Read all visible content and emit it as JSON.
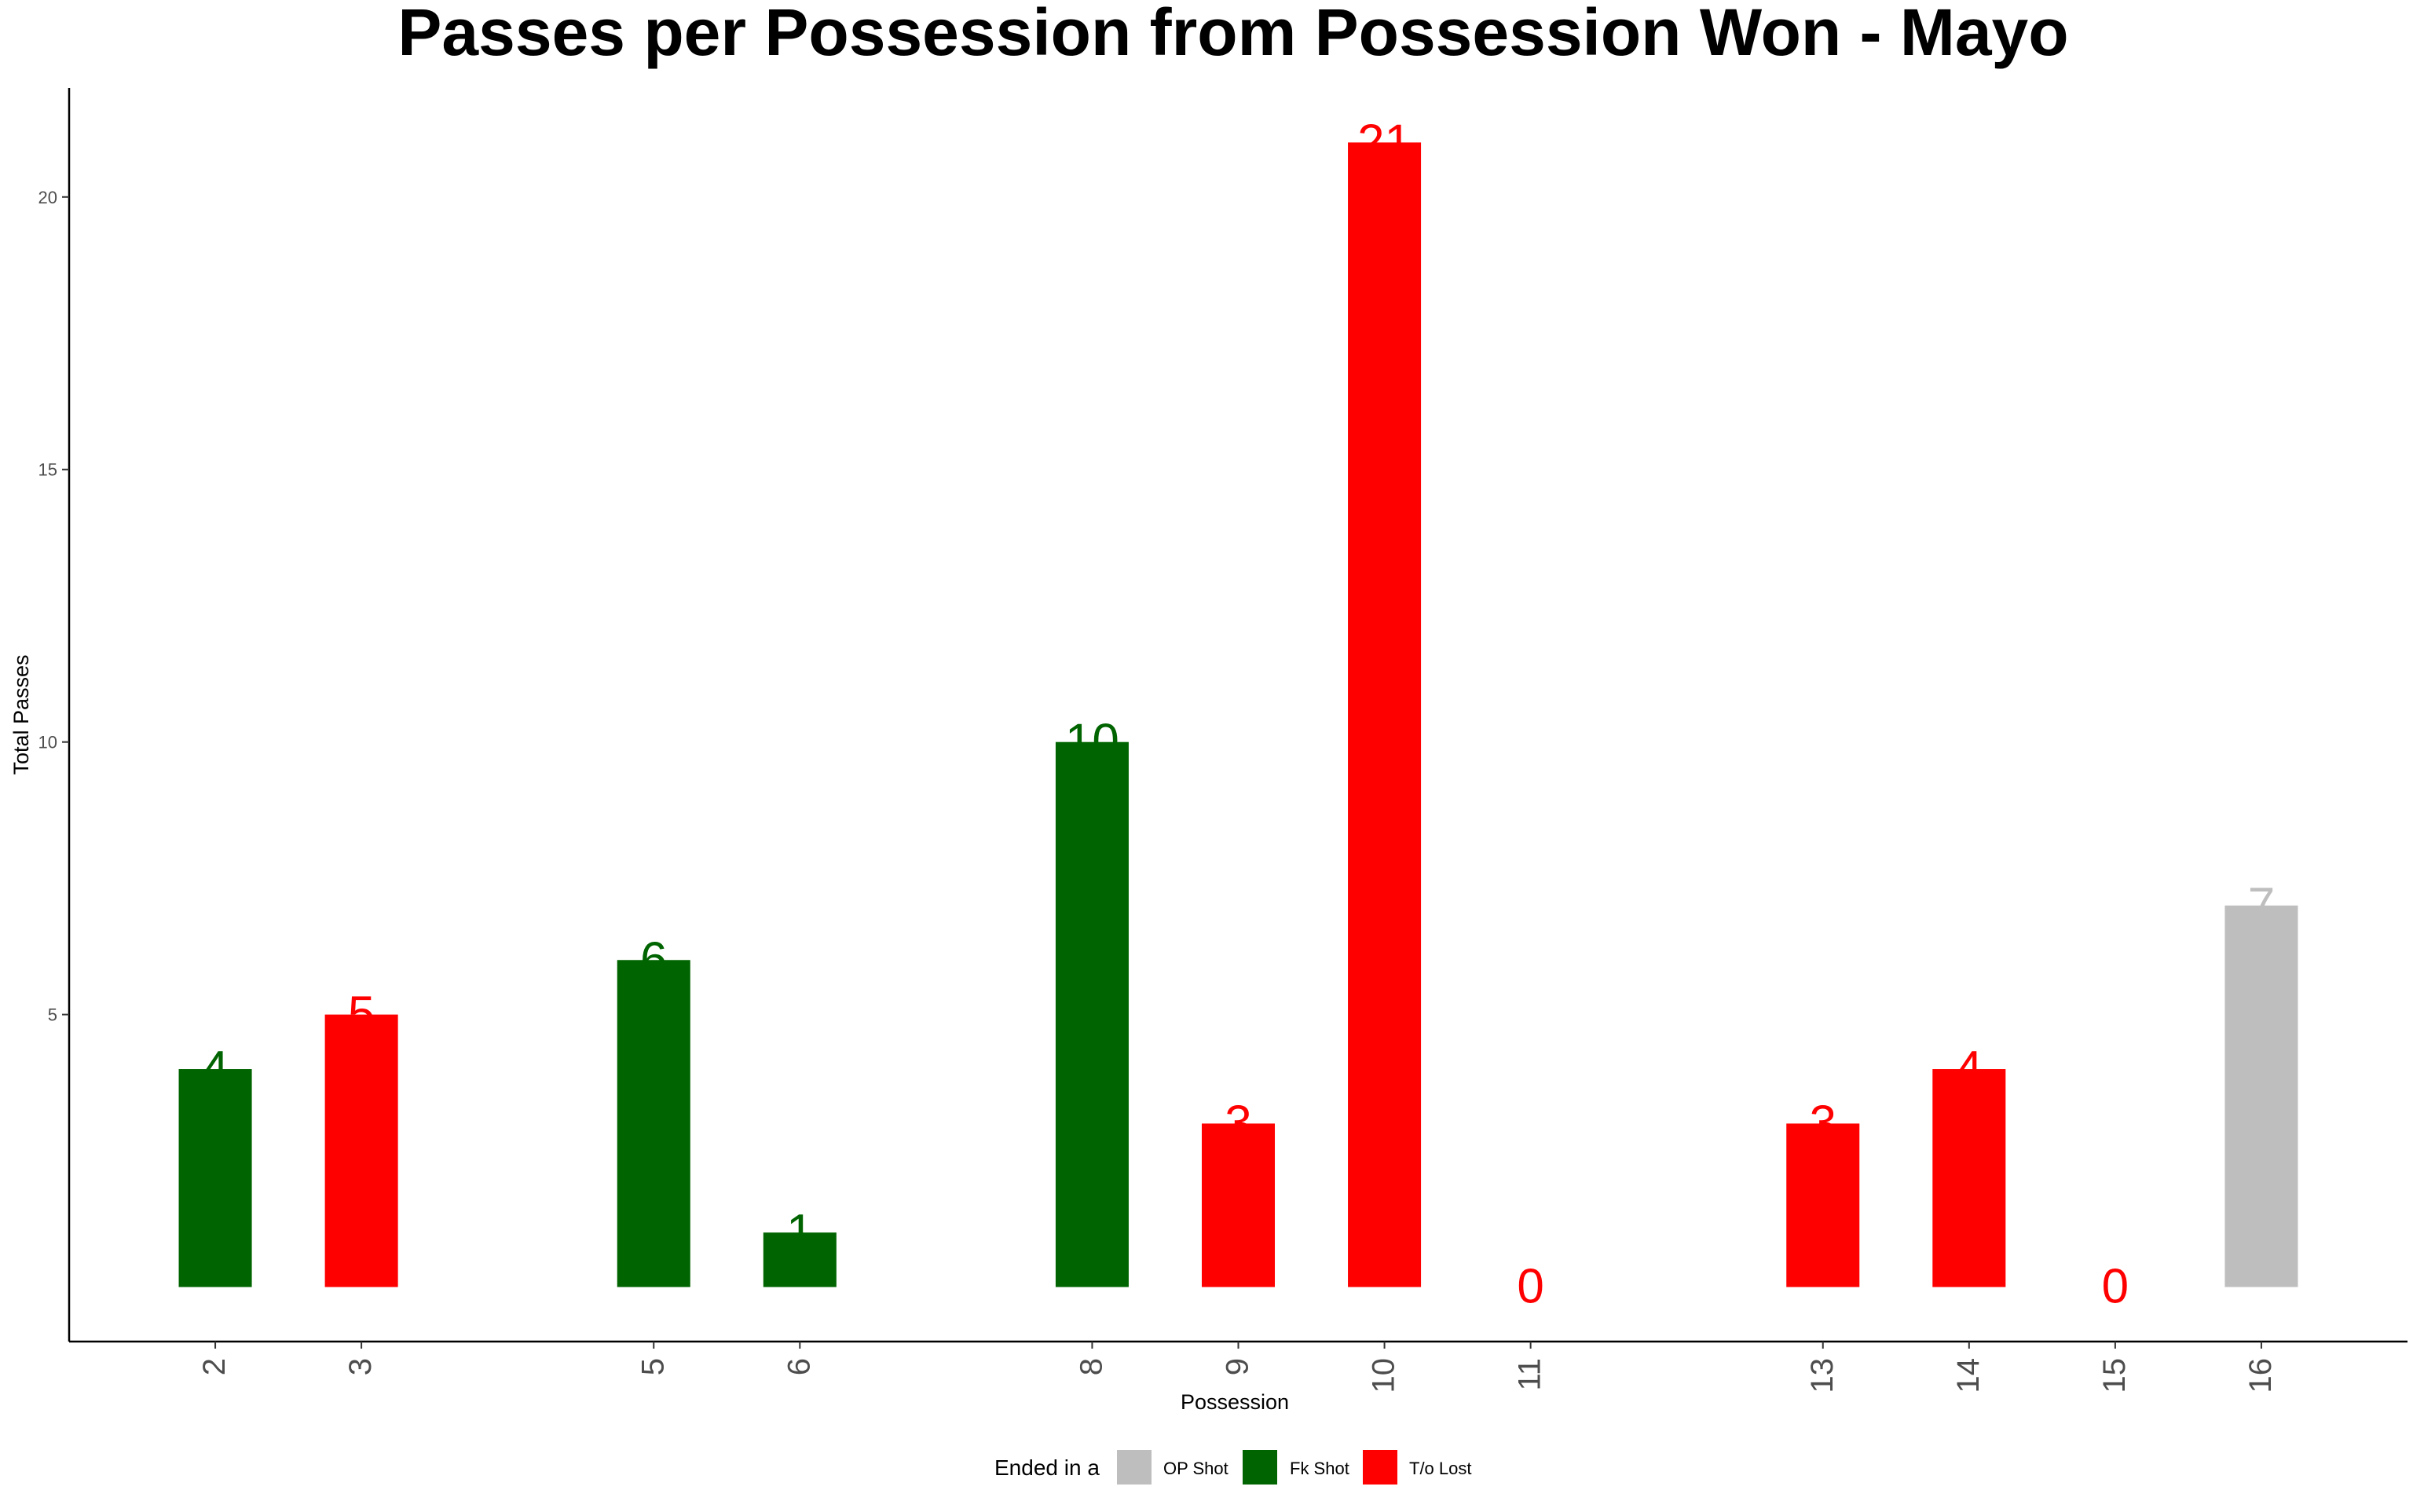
{
  "chart_data": {
    "type": "bar",
    "title": "Passes per Possession from Possession Won - Mayo",
    "xlabel": "Possession",
    "ylabel": "Total Passes",
    "x": [
      2,
      3,
      5,
      6,
      8,
      9,
      10,
      11,
      13,
      14,
      15,
      16
    ],
    "values": [
      4,
      5,
      6,
      1,
      10,
      3,
      21,
      0,
      3,
      4,
      0,
      7
    ],
    "outcome": [
      "Fk Shot",
      "T/o Lost",
      "Fk Shot",
      "Fk Shot",
      "Fk Shot",
      "T/o Lost",
      "T/o Lost",
      "T/o Lost",
      "T/o Lost",
      "T/o Lost",
      "T/o Lost",
      "OP Shot"
    ],
    "xlim": [
      1,
      17
    ],
    "ylim": [
      -1,
      22
    ],
    "yticks": [
      5,
      10,
      15,
      20
    ],
    "grid": false,
    "legend": {
      "title": "Ended in a",
      "position": "bottom",
      "entries": [
        {
          "name": "OP Shot",
          "color": "#bebebe"
        },
        {
          "name": "Fk Shot",
          "color": "#006400"
        },
        {
          "name": "T/o Lost",
          "color": "#ff0000"
        }
      ]
    }
  }
}
